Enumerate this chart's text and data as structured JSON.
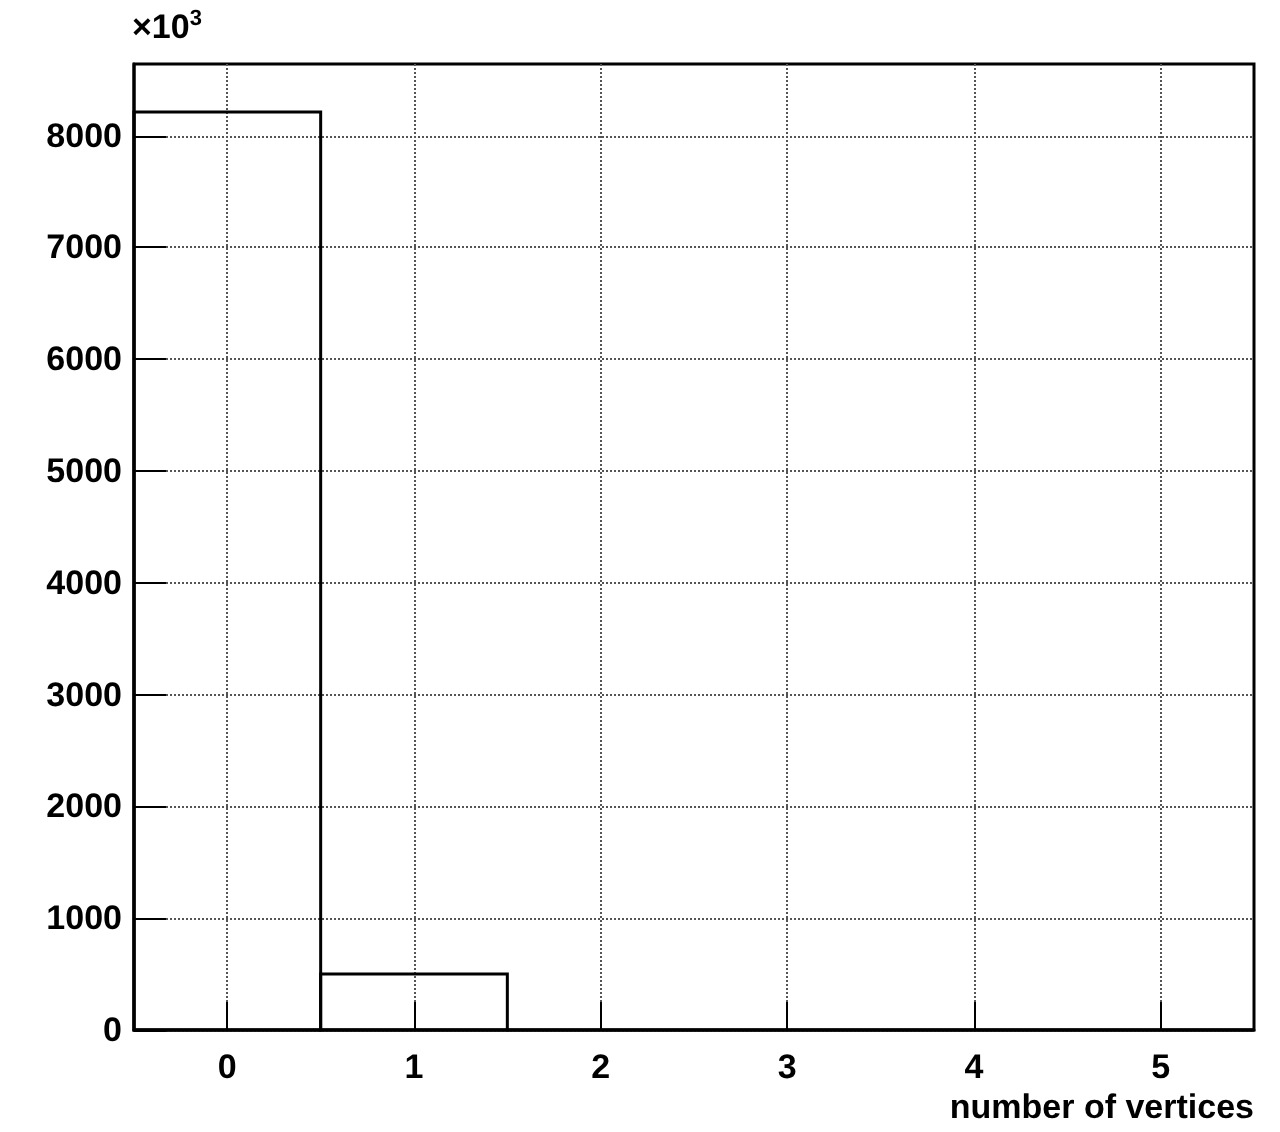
{
  "chart_data": {
    "type": "histogram",
    "xlabel": "number of vertices",
    "annotations": [
      "×10$^{3}$"
    ],
    "bins": [
      -0.5,
      0.5,
      1.5,
      2.5,
      3.5,
      4.5,
      5.5
    ],
    "values": [
      8210,
      500,
      0,
      0,
      0,
      0
    ],
    "color": "#000000",
    "xlim": [
      -0.5,
      5.5
    ],
    "xticks": [
      0,
      1,
      2,
      3,
      4,
      5
    ],
    "ylim": [
      0,
      8640
    ],
    "yticks": [
      0,
      1000,
      2000,
      3000,
      4000,
      5000,
      6000,
      7000,
      8000
    ],
    "grid": true
  }
}
